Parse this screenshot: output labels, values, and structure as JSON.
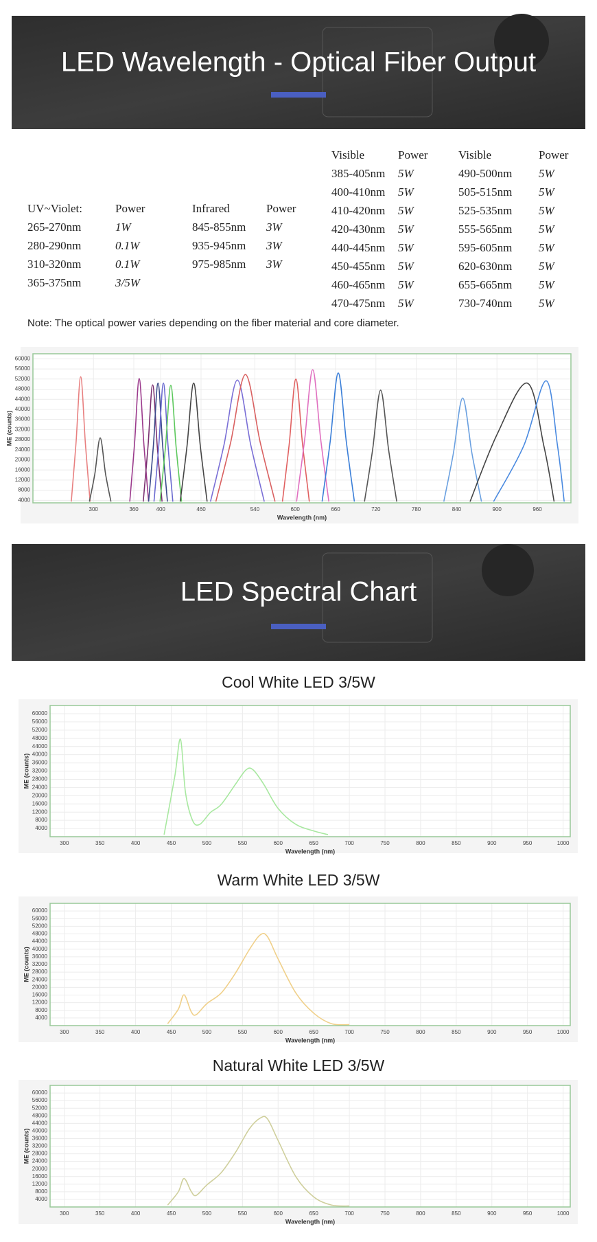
{
  "banners": [
    {
      "title": "LED Wavelength - Optical Fiber Output"
    },
    {
      "title": "LED Spectral Chart"
    }
  ],
  "tables": [
    {
      "header": [
        "UV~Violet:",
        "Power"
      ],
      "rows": [
        [
          "265-270nm",
          "1W"
        ],
        [
          "280-290nm",
          "0.1W"
        ],
        [
          "310-320nm",
          "0.1W"
        ],
        [
          "365-375nm",
          "3/5W"
        ]
      ]
    },
    {
      "header": [
        "Infrared",
        "Power"
      ],
      "rows": [
        [
          "845-855nm",
          "3W"
        ],
        [
          "935-945nm",
          "3W"
        ],
        [
          "975-985nm",
          "3W"
        ]
      ]
    },
    {
      "header": [
        "Visible",
        "Power"
      ],
      "rows": [
        [
          "385-405nm",
          "5W"
        ],
        [
          "400-410nm",
          "5W"
        ],
        [
          "410-420nm",
          "5W"
        ],
        [
          "420-430nm",
          "5W"
        ],
        [
          "440-445nm",
          "5W"
        ],
        [
          "450-455nm",
          "5W"
        ],
        [
          "460-465nm",
          "5W"
        ],
        [
          "470-475nm",
          "5W"
        ]
      ]
    },
    {
      "header": [
        "Visible",
        "Power"
      ],
      "rows": [
        [
          "490-500nm",
          "5W"
        ],
        [
          "505-515nm",
          "5W"
        ],
        [
          "525-535nm",
          "5W"
        ],
        [
          "555-565nm",
          "5W"
        ],
        [
          "595-605nm",
          "5W"
        ],
        [
          "620-630nm",
          "5W"
        ],
        [
          "655-665nm",
          "5W"
        ],
        [
          "730-740nm",
          "5W"
        ]
      ]
    }
  ],
  "note": "Note: The optical power varies depending on the fiber material and core diameter.",
  "chart_data": [
    {
      "type": "line",
      "xlabel": "Wavelength (nm)",
      "ylabel": "ME (counts)",
      "xlim": [
        210,
        1010
      ],
      "xticks": [
        300,
        360,
        400,
        460,
        540,
        600,
        660,
        720,
        780,
        840,
        900,
        960
      ],
      "ylim": [
        3000,
        62000
      ],
      "yticks": [
        4000,
        8000,
        12000,
        16000,
        20000,
        24000,
        28000,
        32000,
        36000,
        40000,
        44000,
        48000,
        52000,
        56000,
        60000
      ],
      "grid": true,
      "series": [
        {
          "color": "#e88080",
          "x": [
            267,
            274,
            281,
            288,
            295
          ],
          "values": [
            3500,
            26500,
            52900,
            26500,
            3500
          ]
        },
        {
          "color": "#555555",
          "x": [
            294,
            302,
            310,
            318,
            326
          ],
          "values": [
            3500,
            14400,
            28700,
            14400,
            3500
          ]
        },
        {
          "color": "#9b3a8c",
          "x": [
            354,
            361,
            368,
            375,
            382
          ],
          "values": [
            3500,
            26100,
            52200,
            26100,
            3500
          ]
        },
        {
          "color": "#7a3070",
          "x": [
            374,
            381,
            388,
            395,
            402
          ],
          "values": [
            3500,
            24900,
            49700,
            24900,
            3500
          ]
        },
        {
          "color": "#3b4a8a",
          "x": [
            382,
            389,
            396,
            403,
            410
          ],
          "values": [
            3500,
            25200,
            50400,
            25200,
            3500
          ]
        },
        {
          "color": "#6a6ad0",
          "x": [
            390,
            397,
            404,
            411,
            418
          ],
          "values": [
            3500,
            25200,
            50400,
            25200,
            3500
          ]
        },
        {
          "color": "#5cc85c",
          "x": [
            399,
            407,
            415,
            423,
            431
          ],
          "values": [
            3500,
            24800,
            49500,
            24800,
            3500
          ]
        },
        {
          "color": "#444444",
          "x": [
            429,
            439,
            449,
            459,
            469
          ],
          "values": [
            3500,
            25200,
            50400,
            25200,
            3500
          ]
        },
        {
          "color": "#7a6fd6",
          "x": [
            474,
            494,
            514,
            534,
            554
          ],
          "values": [
            3500,
            25800,
            51600,
            25800,
            3500
          ]
        },
        {
          "color": "#d96060",
          "x": [
            482,
            504,
            526,
            548,
            570
          ],
          "values": [
            3500,
            26900,
            53800,
            26900,
            3500
          ]
        },
        {
          "color": "#e06060",
          "x": [
            581,
            591,
            601,
            611,
            621
          ],
          "values": [
            3500,
            26000,
            52000,
            26000,
            3500
          ]
        },
        {
          "color": "#e070c0",
          "x": [
            602,
            614,
            626,
            638,
            650
          ],
          "values": [
            3500,
            27900,
            55700,
            27900,
            3500
          ]
        },
        {
          "color": "#3b7fd8",
          "x": [
            640,
            652,
            664,
            676,
            688
          ],
          "values": [
            3500,
            27200,
            54400,
            27200,
            3500
          ]
        },
        {
          "color": "#555555",
          "x": [
            703,
            715,
            727,
            739,
            751
          ],
          "values": [
            3500,
            23800,
            47600,
            23800,
            3500
          ]
        },
        {
          "color": "#6aa0e0",
          "x": [
            821,
            835,
            849,
            863,
            877
          ],
          "values": [
            3500,
            22300,
            44500,
            22300,
            3500
          ]
        },
        {
          "color": "#444444",
          "x": [
            860,
            900,
            945,
            970,
            985
          ],
          "values": [
            3500,
            30000,
            50400,
            25200,
            3500
          ]
        },
        {
          "color": "#4a8ae0",
          "x": [
            895,
            940,
            973,
            990,
            1000
          ],
          "values": [
            3500,
            25700,
            51300,
            25700,
            3500
          ]
        }
      ]
    },
    {
      "type": "line",
      "title": "Cool White LED 3/5W",
      "xlabel": "Wavelength (nm)",
      "ylabel": "ME (counts)",
      "xlim": [
        280,
        1010
      ],
      "xticks": [
        300,
        350,
        400,
        450,
        500,
        550,
        600,
        650,
        700,
        750,
        800,
        850,
        900,
        950,
        1000
      ],
      "ylim": [
        0,
        64000
      ],
      "yticks": [
        4000,
        8000,
        12000,
        16000,
        20000,
        24000,
        28000,
        32000,
        36000,
        40000,
        44000,
        48000,
        52000,
        56000,
        60000
      ],
      "grid": true,
      "series": [
        {
          "color": "#a8e8a0",
          "x": [
            440,
            455,
            463,
            470,
            480,
            490,
            505,
            520,
            540,
            555,
            565,
            580,
            600,
            625,
            650,
            670
          ],
          "values": [
            1000,
            29400,
            47500,
            21600,
            7900,
            6000,
            11800,
            15700,
            25500,
            32600,
            32600,
            25500,
            13800,
            6000,
            2800,
            1000
          ]
        }
      ]
    },
    {
      "type": "line",
      "title": "Warm White LED 3/5W",
      "xlabel": "Wavelength (nm)",
      "ylabel": "ME (counts)",
      "xlim": [
        280,
        1010
      ],
      "xticks": [
        300,
        350,
        400,
        450,
        500,
        550,
        600,
        650,
        700,
        750,
        800,
        850,
        900,
        950,
        1000
      ],
      "ylim": [
        0,
        64000
      ],
      "yticks": [
        4000,
        8000,
        12000,
        16000,
        20000,
        24000,
        28000,
        32000,
        36000,
        40000,
        44000,
        48000,
        52000,
        56000,
        60000
      ],
      "grid": true,
      "series": [
        {
          "color": "#f0d08a",
          "x": [
            445,
            460,
            468,
            478,
            485,
            500,
            520,
            540,
            560,
            575,
            585,
            600,
            625,
            650,
            675,
            700
          ],
          "values": [
            1000,
            8600,
            16100,
            7300,
            5700,
            11500,
            17000,
            27400,
            40000,
            47500,
            46600,
            34900,
            17000,
            6500,
            1000,
            500
          ]
        }
      ]
    },
    {
      "type": "line",
      "title": "Natural White LED 3/5W",
      "xlabel": "Wavelength (nm)",
      "ylabel": "ME (counts)",
      "xlim": [
        280,
        1010
      ],
      "xticks": [
        300,
        350,
        400,
        450,
        500,
        550,
        600,
        650,
        700,
        750,
        800,
        850,
        900,
        950,
        1000
      ],
      "ylim": [
        0,
        64000
      ],
      "yticks": [
        4000,
        8000,
        12000,
        16000,
        20000,
        24000,
        28000,
        32000,
        36000,
        40000,
        44000,
        48000,
        52000,
        56000,
        60000
      ],
      "grid": true,
      "series": [
        {
          "color": "#cfcf9c",
          "x": [
            445,
            460,
            468,
            478,
            485,
            500,
            520,
            540,
            560,
            575,
            585,
            600,
            625,
            650,
            675,
            700
          ],
          "values": [
            1000,
            8000,
            15000,
            8200,
            6100,
            11600,
            18000,
            28600,
            41300,
            46800,
            46400,
            35000,
            15900,
            5300,
            1000,
            500
          ]
        }
      ]
    }
  ]
}
